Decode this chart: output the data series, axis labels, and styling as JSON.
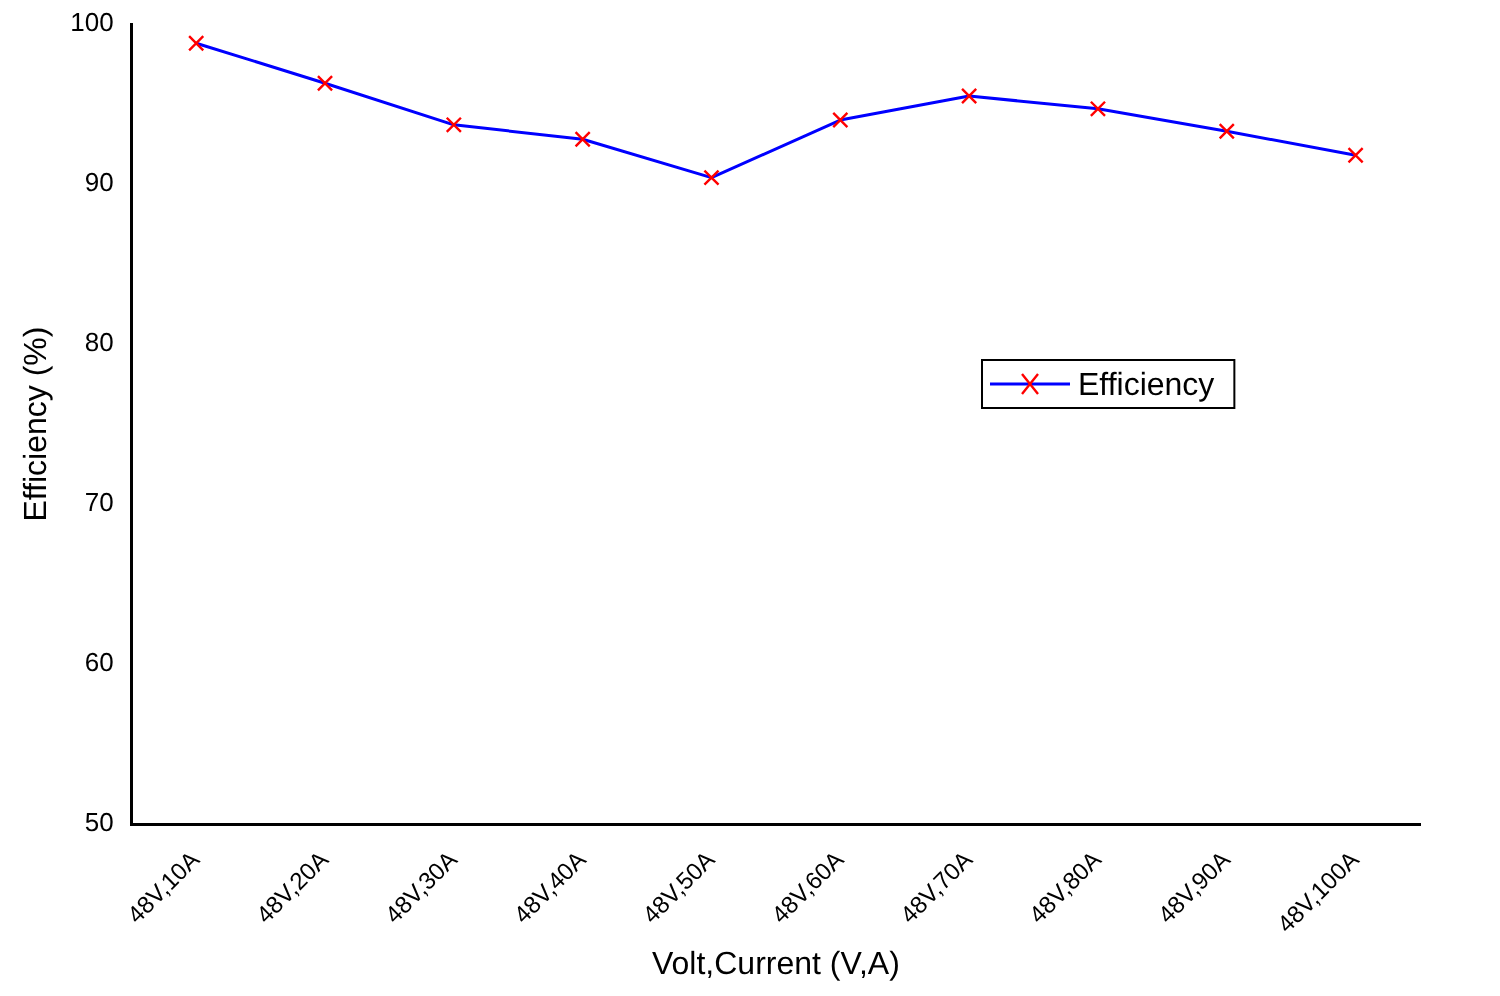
{
  "chart_data": {
    "type": "line",
    "xlabel": "Volt,Current (V,A)",
    "ylabel": "Efficiency (%)",
    "categories": [
      "48V,10A",
      "48V,20A",
      "48V,30A",
      "48V,40A",
      "48V,50A",
      "48V,60A",
      "48V,70A",
      "48V,80A",
      "48V,90A",
      "48V,100A"
    ],
    "series": [
      {
        "name": "Efficiency",
        "color": "#0000ff",
        "colors": [
          "#ff0000",
          "#ff0000",
          "#ff0000",
          "#ff0000",
          "#ff0000",
          "#ff0000",
          "#ff0000",
          "#ff0000",
          "#ff0000",
          "#ff0000"
        ],
        "values": [
          98.8,
          96.3,
          93.7,
          92.8,
          90.4,
          94.0,
          95.5,
          94.7,
          93.3,
          91.8
        ]
      }
    ],
    "ylim": [
      50,
      100
    ],
    "yticks": [
      50,
      60,
      70,
      80,
      90,
      100
    ],
    "grid": false,
    "legend": "right",
    "marker": "cross",
    "line_style": "solid"
  }
}
